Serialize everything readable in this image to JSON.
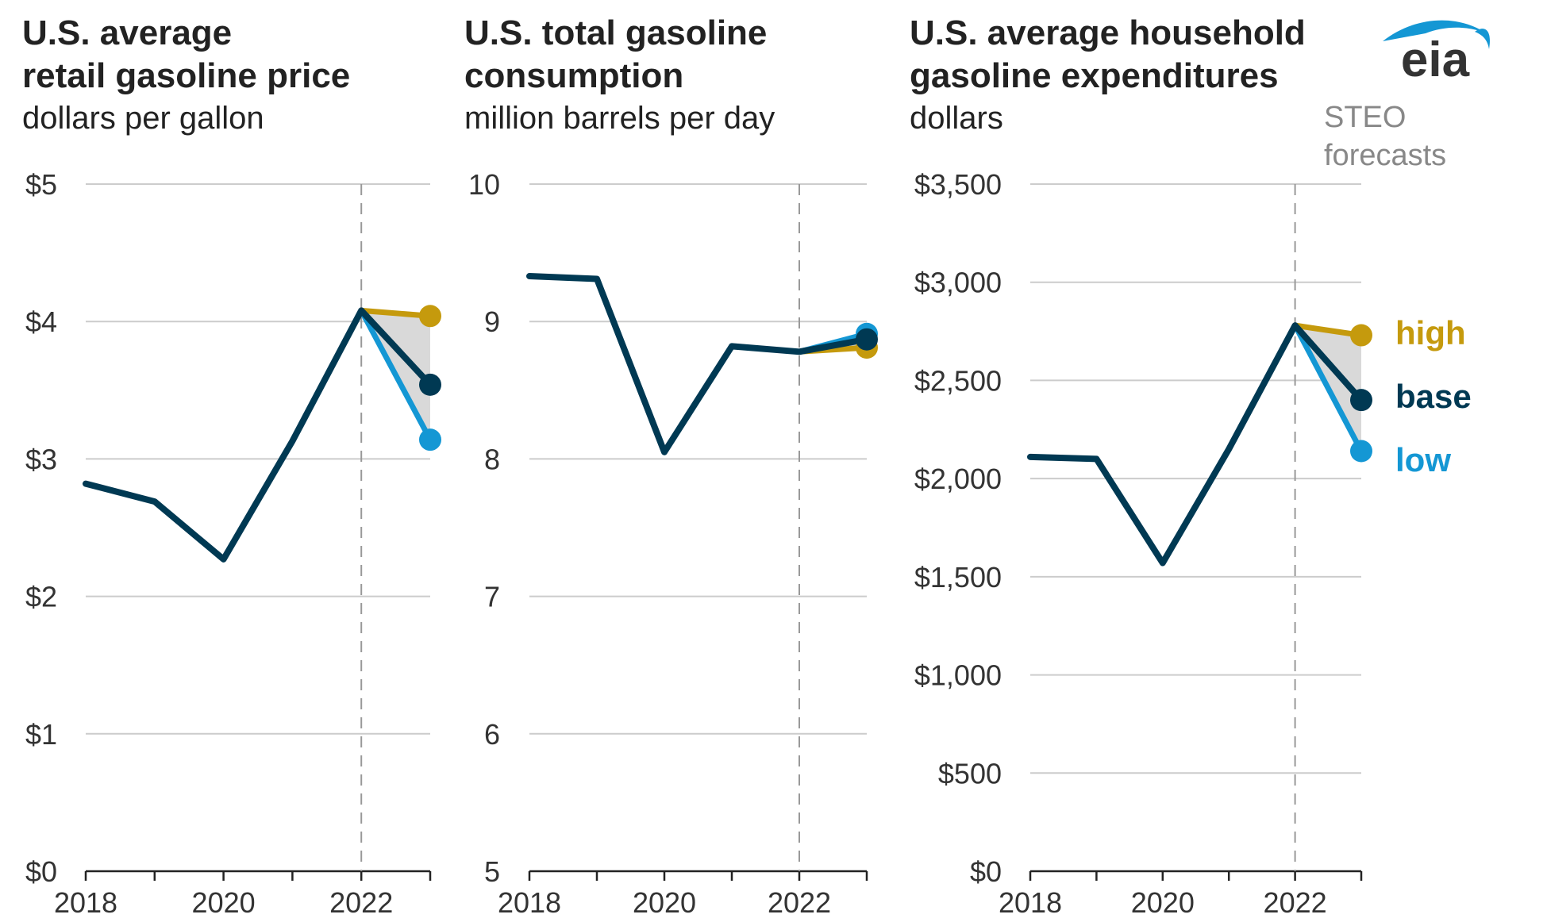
{
  "logo": {
    "text": "eia"
  },
  "steo_label": [
    "STEO",
    "forecasts"
  ],
  "legend": [
    {
      "label": "high",
      "color": "#c59a0d"
    },
    {
      "label": "base",
      "color": "#003953"
    },
    {
      "label": "low",
      "color": "#1497d4"
    }
  ],
  "colors": {
    "base": "#003953",
    "high": "#c59a0d",
    "low": "#1497d4",
    "band": "#d9d9d9",
    "divider": "#999999"
  },
  "chart_data": [
    {
      "type": "line",
      "title": [
        "U.S. average",
        "retail gasoline price"
      ],
      "ylabel": "dollars per gallon",
      "x_ticks": [
        2018,
        2020,
        2022
      ],
      "x_range": [
        2018,
        2023
      ],
      "ylim": [
        0,
        5
      ],
      "y_ticks": [
        {
          "v": 0,
          "label": "$0"
        },
        {
          "v": 1,
          "label": "$1"
        },
        {
          "v": 2,
          "label": "$2"
        },
        {
          "v": 3,
          "label": "$3"
        },
        {
          "v": 4,
          "label": "$4"
        },
        {
          "v": 5,
          "label": "$5"
        }
      ],
      "forecast_start": 2022,
      "series": [
        {
          "name": "base",
          "x": [
            2018,
            2019,
            2020,
            2021,
            2022,
            2023
          ],
          "values": [
            2.82,
            2.69,
            2.27,
            3.13,
            4.08,
            3.54
          ]
        },
        {
          "name": "high",
          "x": [
            2022,
            2023
          ],
          "values": [
            4.08,
            4.04
          ]
        },
        {
          "name": "low",
          "x": [
            2022,
            2023
          ],
          "values": [
            4.08,
            3.14
          ]
        }
      ]
    },
    {
      "type": "line",
      "title": [
        "U.S. total gasoline",
        "consumption"
      ],
      "ylabel": "million barrels per day",
      "x_ticks": [
        2018,
        2020,
        2022
      ],
      "x_range": [
        2018,
        2023
      ],
      "ylim": [
        5,
        10
      ],
      "y_ticks": [
        {
          "v": 5,
          "label": "5"
        },
        {
          "v": 6,
          "label": "6"
        },
        {
          "v": 7,
          "label": "7"
        },
        {
          "v": 8,
          "label": "8"
        },
        {
          "v": 9,
          "label": "9"
        },
        {
          "v": 10,
          "label": "10"
        }
      ],
      "forecast_start": 2022,
      "series": [
        {
          "name": "base",
          "x": [
            2018,
            2019,
            2020,
            2021,
            2022,
            2023
          ],
          "values": [
            9.33,
            9.31,
            8.05,
            8.82,
            8.78,
            8.87
          ]
        },
        {
          "name": "high",
          "x": [
            2022,
            2023
          ],
          "values": [
            8.78,
            8.81
          ]
        },
        {
          "name": "low",
          "x": [
            2022,
            2023
          ],
          "values": [
            8.78,
            8.91
          ]
        }
      ]
    },
    {
      "type": "line",
      "title": [
        "U.S. average household",
        "gasoline expenditures"
      ],
      "ylabel": "dollars",
      "x_ticks": [
        2018,
        2020,
        2022
      ],
      "x_range": [
        2018,
        2023
      ],
      "ylim": [
        0,
        3500
      ],
      "y_ticks": [
        {
          "v": 0,
          "label": "$0"
        },
        {
          "v": 500,
          "label": "$500"
        },
        {
          "v": 1000,
          "label": "$1,000"
        },
        {
          "v": 1500,
          "label": "$1,500"
        },
        {
          "v": 2000,
          "label": "$2,000"
        },
        {
          "v": 2500,
          "label": "$2,500"
        },
        {
          "v": 3000,
          "label": "$3,000"
        },
        {
          "v": 3500,
          "label": "$3,500"
        }
      ],
      "forecast_start": 2022,
      "series": [
        {
          "name": "base",
          "x": [
            2018,
            2019,
            2020,
            2021,
            2022,
            2023
          ],
          "values": [
            2110,
            2100,
            1570,
            2150,
            2780,
            2400
          ]
        },
        {
          "name": "high",
          "x": [
            2022,
            2023
          ],
          "values": [
            2780,
            2730
          ]
        },
        {
          "name": "low",
          "x": [
            2022,
            2023
          ],
          "values": [
            2780,
            2140
          ]
        }
      ]
    }
  ]
}
